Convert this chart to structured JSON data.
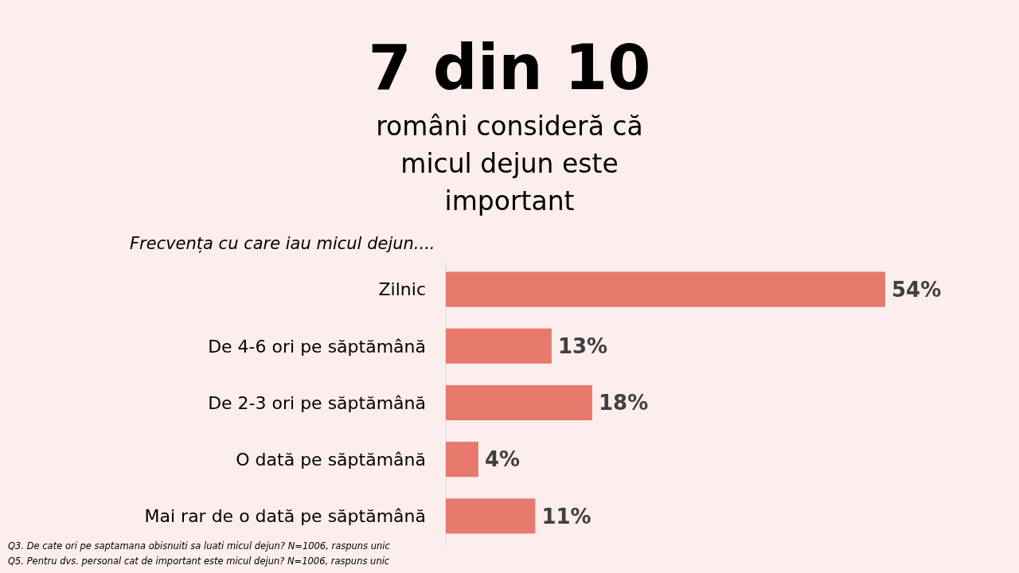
{
  "chart_data": {
    "type": "bar",
    "orientation": "horizontal",
    "title": "7 din 10",
    "subtitle": "români consideră că micul dejun este important",
    "ylabel": "Frecvența cu care iau micul dejun....",
    "categories": [
      "Zilnic",
      "De 4-6 ori pe săptămână",
      "De 2-3 ori pe săptămână",
      "O dată pe săptămână",
      "Mai rar de o dată pe săptămână"
    ],
    "values": [
      54,
      13,
      18,
      4,
      11
    ],
    "value_labels": [
      "54%",
      "13%",
      "18%",
      "4%",
      "11%"
    ],
    "color": "#e8796d",
    "annotations": [
      "Q3. De cate ori pe saptamana obisnuiti sa luati micul dejun? N=1006, raspuns unic",
      "Q5. Pentru dvs. personal cat de important este micul dejun? N=1006, raspuns unic"
    ]
  }
}
